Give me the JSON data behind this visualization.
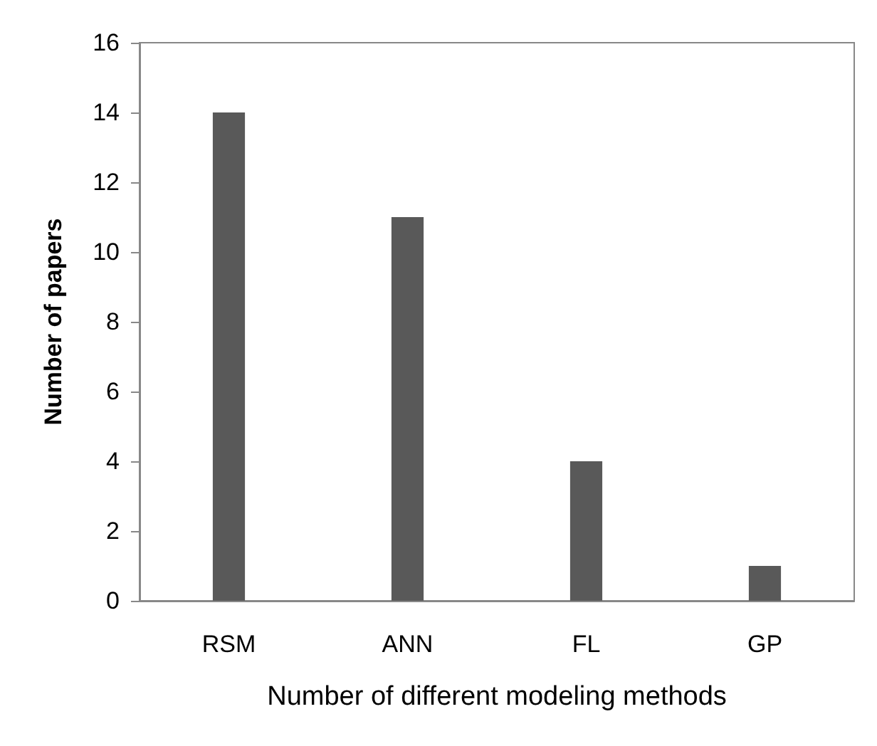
{
  "chart_data": {
    "type": "bar",
    "xlabel": "Number of different modeling methods",
    "ylabel": "Number of papers",
    "categories": [
      "RSM",
      "ANN",
      "FL",
      "GP"
    ],
    "values": [
      14,
      11,
      4,
      1
    ],
    "color": "#595959",
    "ylim": [
      0,
      16
    ],
    "yticks": [
      0,
      2,
      4,
      6,
      8,
      10,
      12,
      14,
      16
    ],
    "grid": false
  }
}
